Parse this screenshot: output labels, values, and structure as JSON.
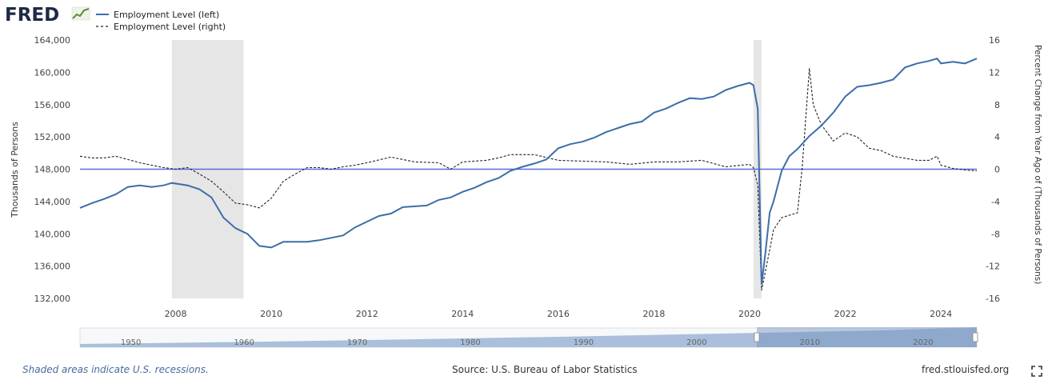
{
  "brand": {
    "logo_text": "FRED"
  },
  "colors": {
    "left_series": "#3d6ea8",
    "right_series": "#222222",
    "recession": "#e6e6e6",
    "zero_line": "#5a6be0",
    "navigator_fill": "#a9bfdb"
  },
  "footer": {
    "recessions_note": "Shaded areas indicate U.S. recessions.",
    "source": "Source: U.S. Bureau of Labor Statistics",
    "site": "fred.stlouisfed.org"
  },
  "icons": {
    "fullscreen": "fullscreen-icon",
    "logo_chart": "chart-line-icon"
  },
  "navigator": {
    "labels": [
      "1950",
      "1960",
      "1970",
      "1980",
      "1990",
      "2000",
      "2010",
      "2020"
    ],
    "selected_range": [
      2006.0,
      2024.75
    ]
  },
  "chart_data": {
    "type": "line",
    "title": "",
    "xlabel": "",
    "ylabel_left": "Thousands of Persons",
    "ylabel_right": "Percent Change from Year Ago of (Thousands of Persons)",
    "xlim": [
      2006.0,
      2024.75
    ],
    "ylim_left": [
      132000,
      164000
    ],
    "ylim_right": [
      -16,
      16
    ],
    "x_ticks": [
      "2008",
      "2010",
      "2012",
      "2014",
      "2016",
      "2018",
      "2020",
      "2022",
      "2024"
    ],
    "y_ticks_left": [
      "132,000",
      "136,000",
      "140,000",
      "144,000",
      "148,000",
      "152,000",
      "156,000",
      "160,000",
      "164,000"
    ],
    "y_ticks_right": [
      "-16",
      "-12",
      "-8",
      "-4",
      "0",
      "4",
      "8",
      "12",
      "16"
    ],
    "legend_position": "top-left",
    "grid": false,
    "recessions": [
      [
        2007.92,
        2009.42
      ],
      [
        2020.08,
        2020.25
      ]
    ],
    "series": [
      {
        "name": "Employment Level (left)",
        "axis": "left",
        "style": "solid",
        "x": [
          2006.0,
          2006.25,
          2006.5,
          2006.75,
          2007.0,
          2007.25,
          2007.5,
          2007.75,
          2007.92,
          2008.25,
          2008.5,
          2008.75,
          2009.0,
          2009.25,
          2009.5,
          2009.75,
          2010.0,
          2010.25,
          2010.5,
          2010.75,
          2011.0,
          2011.25,
          2011.5,
          2011.75,
          2012.0,
          2012.25,
          2012.5,
          2012.75,
          2013.0,
          2013.25,
          2013.5,
          2013.75,
          2014.0,
          2014.25,
          2014.5,
          2014.75,
          2015.0,
          2015.25,
          2015.5,
          2015.75,
          2016.0,
          2016.25,
          2016.5,
          2016.75,
          2017.0,
          2017.25,
          2017.5,
          2017.75,
          2018.0,
          2018.25,
          2018.5,
          2018.75,
          2019.0,
          2019.25,
          2019.5,
          2019.75,
          2020.0,
          2020.08,
          2020.17,
          2020.25,
          2020.33,
          2020.42,
          2020.5,
          2020.67,
          2020.83,
          2021.0,
          2021.25,
          2021.5,
          2021.75,
          2022.0,
          2022.25,
          2022.5,
          2022.75,
          2023.0,
          2023.25,
          2023.5,
          2023.75,
          2023.92,
          2024.0,
          2024.25,
          2024.5,
          2024.75
        ],
        "values": [
          143200,
          143800,
          144300,
          144900,
          145800,
          146000,
          145800,
          146000,
          146300,
          146000,
          145500,
          144500,
          142000,
          140700,
          140000,
          138500,
          138300,
          139000,
          139000,
          139000,
          139200,
          139500,
          139800,
          140800,
          141500,
          142200,
          142500,
          143300,
          143400,
          143500,
          144200,
          144500,
          145200,
          145700,
          146400,
          146900,
          147800,
          148300,
          148700,
          149200,
          150600,
          151100,
          151400,
          151900,
          152600,
          153100,
          153600,
          153900,
          155000,
          155500,
          156200,
          156800,
          156700,
          157000,
          157800,
          158300,
          158700,
          158400,
          155500,
          133700,
          137600,
          142600,
          144000,
          147800,
          149600,
          150500,
          152100,
          153400,
          155000,
          157000,
          158200,
          158400,
          158700,
          159100,
          160600,
          161100,
          161400,
          161700,
          161100,
          161300,
          161100,
          161700
        ]
      },
      {
        "name": "Employment Level (right)",
        "axis": "right",
        "style": "dashed",
        "x": [
          2006.0,
          2006.25,
          2006.5,
          2006.75,
          2007.0,
          2007.25,
          2007.5,
          2007.75,
          2008.0,
          2008.25,
          2008.5,
          2008.75,
          2009.0,
          2009.25,
          2009.5,
          2009.75,
          2010.0,
          2010.25,
          2010.5,
          2010.75,
          2011.0,
          2011.25,
          2011.5,
          2011.75,
          2012.0,
          2012.5,
          2013.0,
          2013.5,
          2013.75,
          2014.0,
          2014.5,
          2014.75,
          2015.0,
          2015.5,
          2016.0,
          2016.5,
          2017.0,
          2017.5,
          2018.0,
          2018.5,
          2019.0,
          2019.5,
          2020.0,
          2020.08,
          2020.17,
          2020.25,
          2020.42,
          2020.5,
          2020.67,
          2020.83,
          2021.0,
          2021.1,
          2021.25,
          2021.33,
          2021.5,
          2021.75,
          2022.0,
          2022.25,
          2022.5,
          2022.75,
          2023.0,
          2023.5,
          2023.75,
          2023.92,
          2024.0,
          2024.25,
          2024.5,
          2024.75
        ],
        "values": [
          1.6,
          1.4,
          1.4,
          1.6,
          1.2,
          0.8,
          0.5,
          0.2,
          0.0,
          0.2,
          -0.6,
          -1.5,
          -2.8,
          -4.2,
          -4.4,
          -4.8,
          -3.6,
          -1.5,
          -0.6,
          0.2,
          0.2,
          0.0,
          0.3,
          0.5,
          0.8,
          1.5,
          0.9,
          0.8,
          0.0,
          0.9,
          1.1,
          1.4,
          1.8,
          1.8,
          1.1,
          1.0,
          0.9,
          0.6,
          0.9,
          0.9,
          1.1,
          0.3,
          0.6,
          0.2,
          -2.0,
          -15.0,
          -10.0,
          -7.5,
          -6.0,
          -5.7,
          -5.4,
          0.3,
          12.5,
          8.0,
          5.5,
          3.5,
          4.5,
          4.0,
          2.6,
          2.3,
          1.6,
          1.1,
          1.1,
          1.6,
          0.5,
          0.1,
          -0.1,
          -0.2
        ]
      }
    ]
  }
}
